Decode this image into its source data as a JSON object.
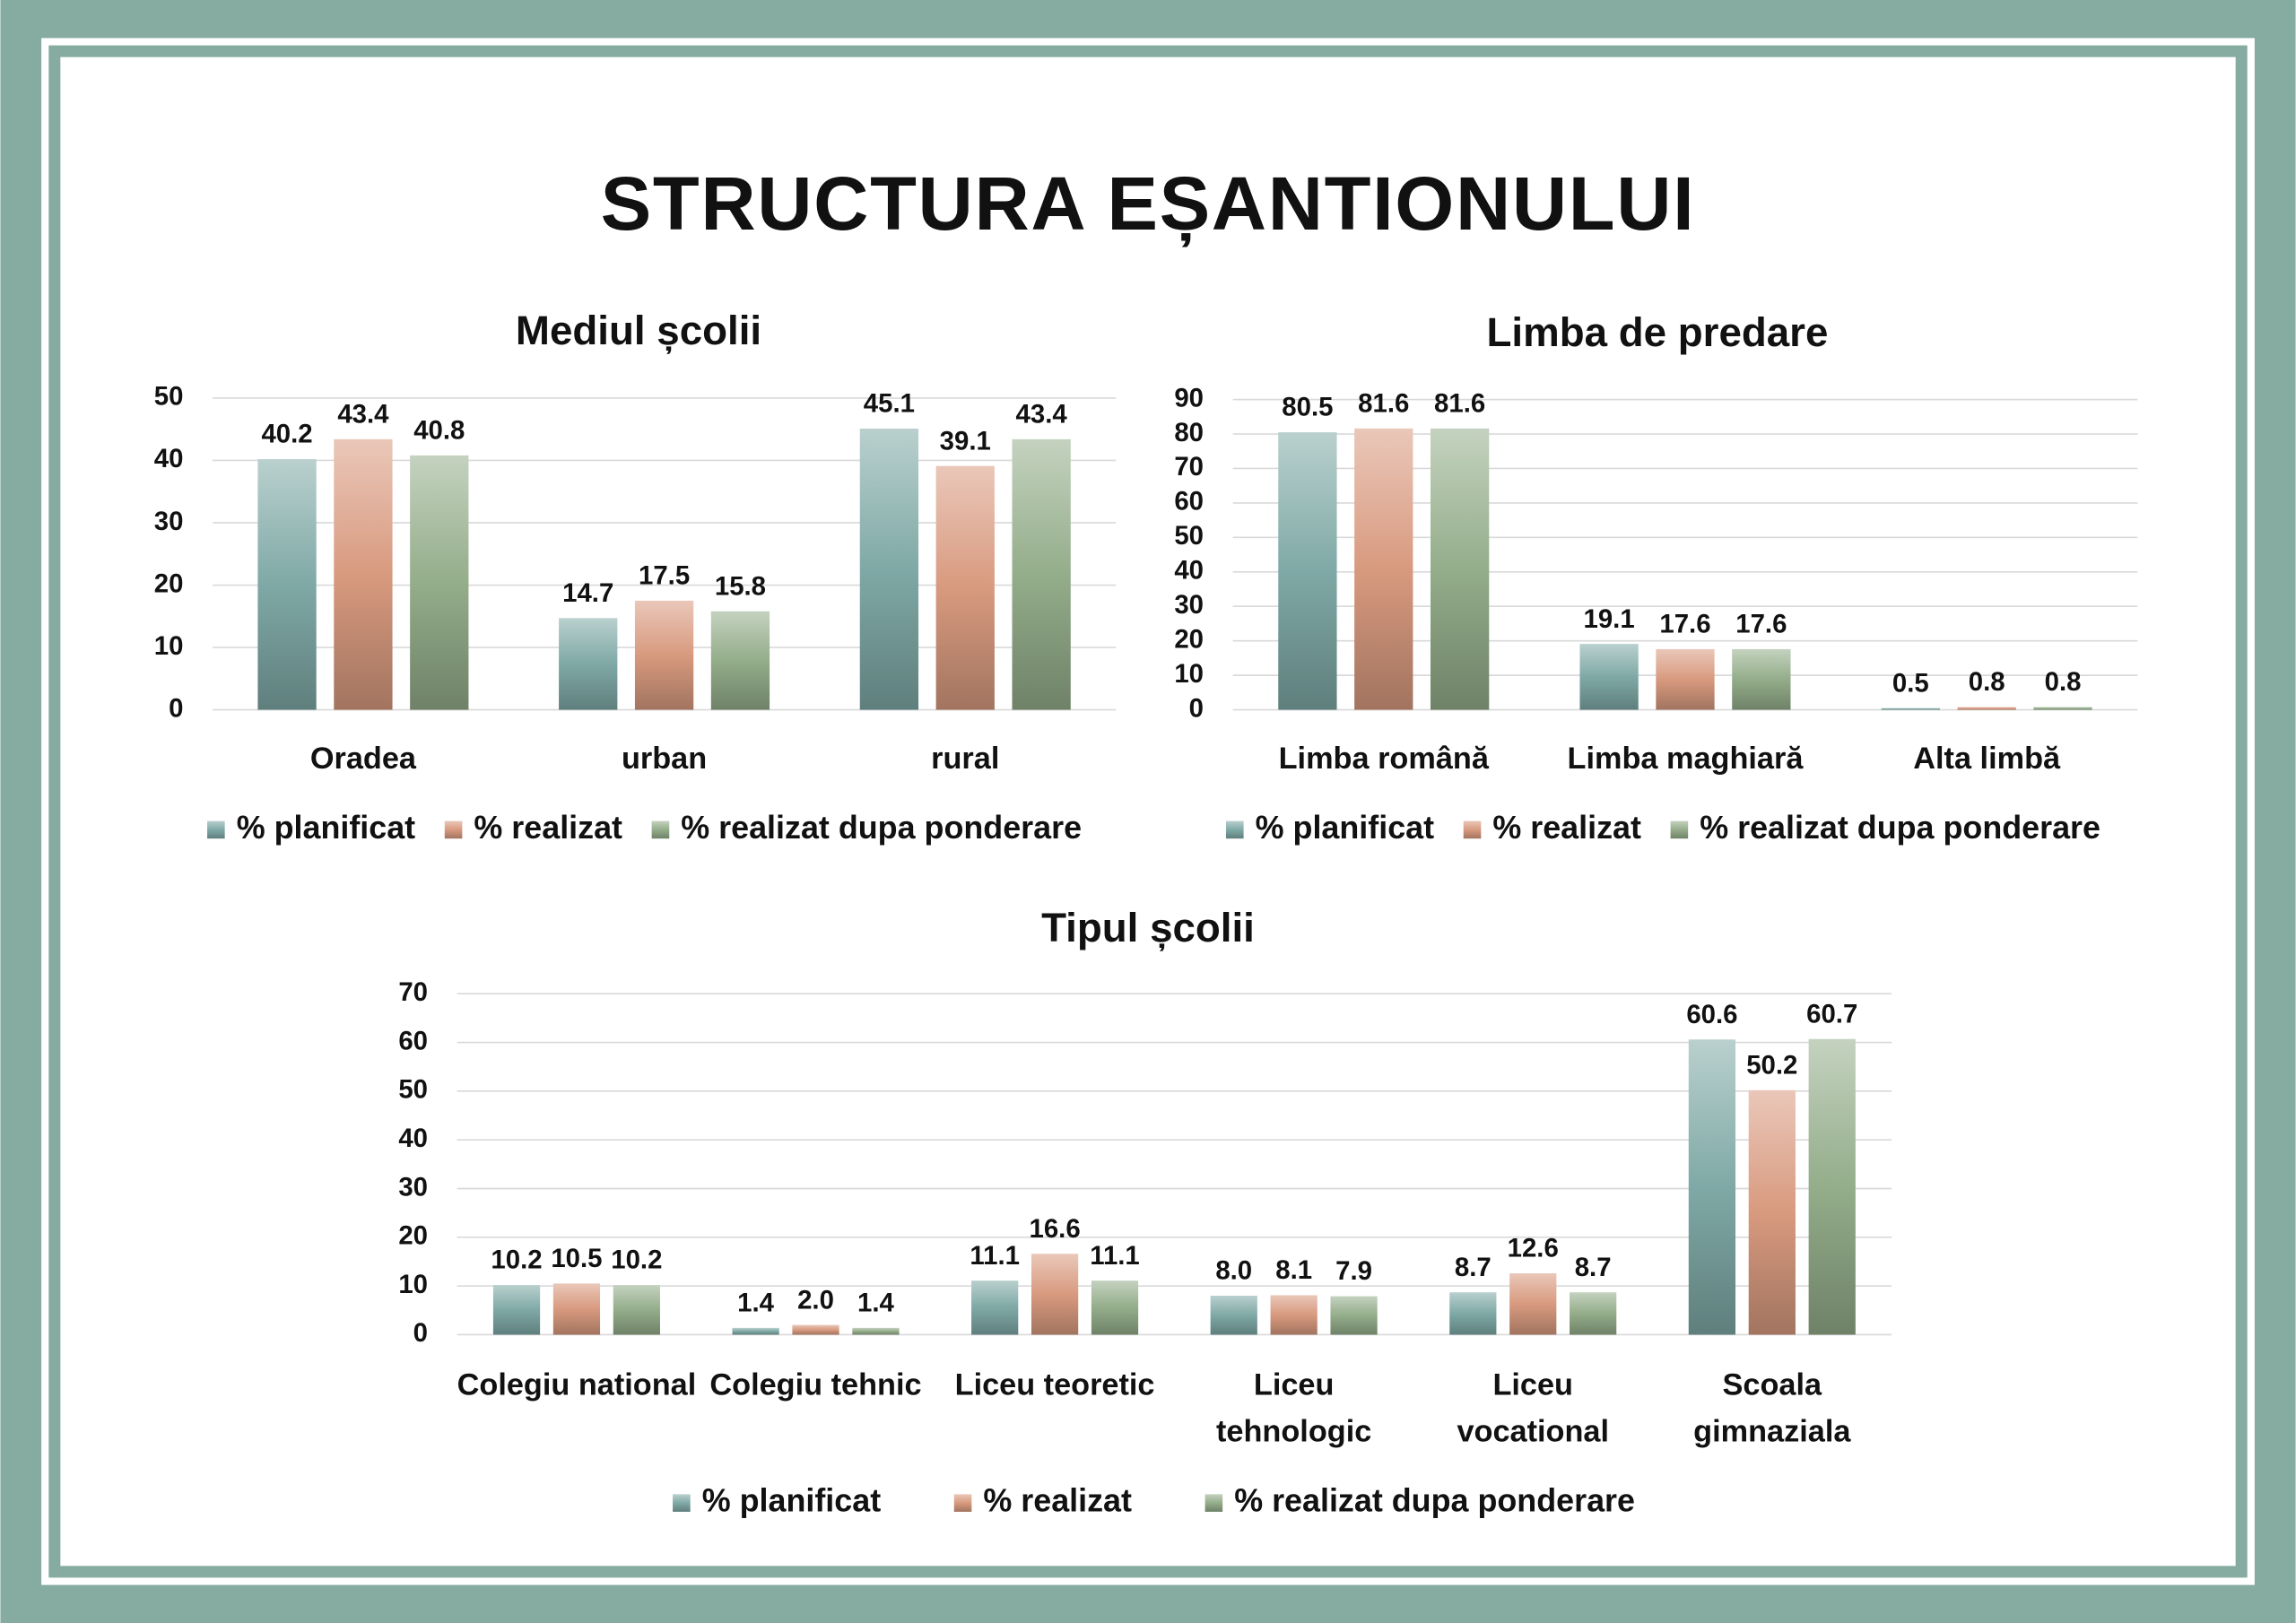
{
  "title": "STRUCTURA EȘANTIONULUI",
  "chart_data": [
    {
      "type": "bar",
      "title": "Mediul școlii",
      "categories": [
        "Oradea",
        "urban",
        "rural"
      ],
      "series": [
        {
          "name": "% planificat",
          "color": "#7fa9a6",
          "values": [
            40.2,
            14.7,
            45.1
          ]
        },
        {
          "name": "% realizat",
          "color": "#d89a7f",
          "values": [
            43.4,
            17.5,
            39.1
          ]
        },
        {
          "name": "% realizat dupa ponderare",
          "color": "#94ad8a",
          "values": [
            40.8,
            15.8,
            43.4
          ]
        }
      ],
      "ylim": [
        0,
        50
      ],
      "yticks": [
        0,
        10,
        20,
        30,
        40,
        50
      ],
      "grid": true,
      "legend": "bottom"
    },
    {
      "type": "bar",
      "title": "Limba de predare",
      "categories": [
        "Limba română",
        "Limba maghiară",
        "Alta limbă"
      ],
      "series": [
        {
          "name": "% planificat",
          "color": "#7fa9a6",
          "values": [
            80.5,
            19.1,
            0.5
          ]
        },
        {
          "name": "% realizat",
          "color": "#d89a7f",
          "values": [
            81.6,
            17.6,
            0.8
          ]
        },
        {
          "name": "% realizat dupa ponderare",
          "color": "#94ad8a",
          "values": [
            81.6,
            17.6,
            0.8
          ]
        }
      ],
      "ylim": [
        0,
        90
      ],
      "yticks": [
        0,
        10,
        20,
        30,
        40,
        50,
        60,
        70,
        80,
        90
      ],
      "grid": true,
      "legend": "bottom"
    },
    {
      "type": "bar",
      "title": "Tipul școlii",
      "categories": [
        "Colegiu national",
        "Colegiu tehnic",
        "Liceu teoretic",
        "Liceu tehnologic",
        "Liceu vocational",
        "Scoala gimnaziala"
      ],
      "series": [
        {
          "name": "% planificat",
          "color": "#7fa9a6",
          "values": [
            10.2,
            1.4,
            11.1,
            8.0,
            8.7,
            60.6
          ],
          "value_labels": [
            "10.2",
            "1.4",
            "11.1",
            "8.0",
            "8.7",
            "60.6"
          ]
        },
        {
          "name": "% realizat",
          "color": "#d89a7f",
          "values": [
            10.5,
            2.0,
            16.6,
            8.1,
            12.6,
            50.2
          ],
          "value_labels": [
            "10.5",
            "2.0",
            "16.6",
            "8.1",
            "12.6",
            "50.2"
          ]
        },
        {
          "name": "% realizat dupa ponderare",
          "color": "#94ad8a",
          "values": [
            10.2,
            1.4,
            11.1,
            7.9,
            8.7,
            60.7
          ],
          "value_labels": [
            "10.2",
            "1.4",
            "11.1",
            "7.9",
            "8.7",
            "60.7"
          ]
        }
      ],
      "ylim": [
        0,
        70
      ],
      "yticks": [
        0,
        10,
        20,
        30,
        40,
        50,
        60,
        70
      ],
      "grid": true,
      "legend": "bottom"
    }
  ]
}
